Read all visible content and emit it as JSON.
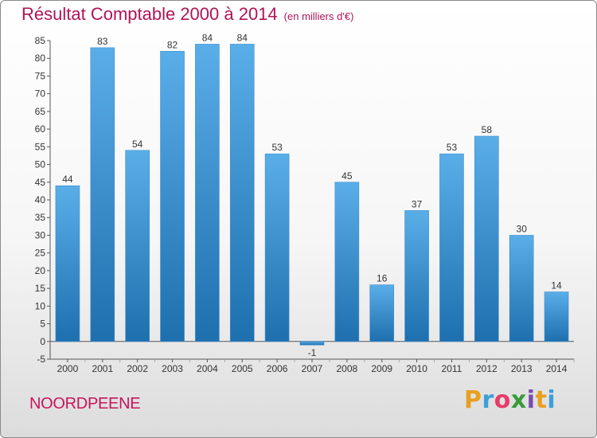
{
  "header": {
    "title": "Résultat Comptable 2000 à 2014",
    "subtitle": "(en milliers d'€)"
  },
  "footer": {
    "commune": "NOORDPEENE",
    "logo_letters": [
      "P",
      "r",
      "o",
      "x",
      "i",
      "t",
      "i"
    ],
    "logo_colors": [
      "#e8a020",
      "#3aa0d8",
      "#e83a6a",
      "#3a9a3a",
      "#7a4ab0",
      "#e8a020",
      "#3aa0d8"
    ]
  },
  "colors": {
    "bar_light": "#5aaee8",
    "bar_dark": "#1e6fae",
    "axis": "#555555",
    "grid": "#d0d0d0"
  },
  "chart_data": {
    "type": "bar",
    "title": "Résultat Comptable 2000 à 2014",
    "subtitle": "(en milliers d'€)",
    "xlabel": "",
    "ylabel": "",
    "categories": [
      "2000",
      "2001",
      "2002",
      "2003",
      "2004",
      "2005",
      "2006",
      "2007",
      "2008",
      "2009",
      "2010",
      "2011",
      "2012",
      "2013",
      "2014"
    ],
    "values": [
      44,
      83,
      54,
      82,
      84,
      84,
      53,
      -1,
      45,
      16,
      37,
      53,
      58,
      30,
      14
    ],
    "ylim": [
      -5,
      85
    ],
    "yticks": [
      -5,
      0,
      5,
      10,
      15,
      20,
      25,
      30,
      35,
      40,
      45,
      50,
      55,
      60,
      65,
      70,
      75,
      80,
      85
    ],
    "grid": false
  }
}
